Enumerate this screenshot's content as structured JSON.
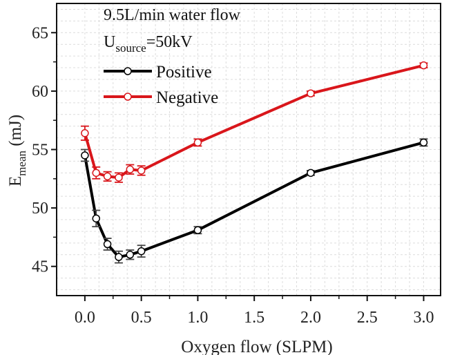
{
  "chart_data": {
    "type": "line",
    "title": "",
    "xlabel": "Oxygen flow (SLPM)",
    "ylabel": {
      "main": "E",
      "subscript": "mean",
      "unit": " (mJ)"
    },
    "xlim": [
      -0.25,
      3.15
    ],
    "ylim": [
      42.5,
      67.5
    ],
    "xticks": [
      0.0,
      0.5,
      1.0,
      1.5,
      2.0,
      2.5,
      3.0
    ],
    "xtick_labels": [
      "0.0",
      "0.5",
      "1.0",
      "1.5",
      "2.0",
      "2.5",
      "3.0"
    ],
    "yticks": [
      45,
      50,
      55,
      60,
      65
    ],
    "ytick_labels": [
      "45",
      "50",
      "55",
      "60",
      "65"
    ],
    "grid": true,
    "annotations": {
      "flow": "9.5L/min water flow",
      "source_main": "U",
      "source_sub": "source",
      "source_value": "=50kV"
    },
    "legend_position": "top-left",
    "series": [
      {
        "name": "Positive",
        "color": "#000000",
        "errorbar_color": "#444444",
        "x": [
          0.0,
          0.1,
          0.2,
          0.3,
          0.4,
          0.5,
          1.0,
          2.0,
          3.0
        ],
        "y": [
          54.5,
          49.1,
          46.9,
          45.8,
          46.0,
          46.3,
          48.1,
          53.0,
          55.6
        ],
        "err": [
          0.5,
          0.7,
          0.5,
          0.5,
          0.4,
          0.5,
          0.3,
          0.2,
          0.3
        ]
      },
      {
        "name": "Negative",
        "color": "#d9161b",
        "errorbar_color": "#d9161b",
        "x": [
          0.0,
          0.1,
          0.2,
          0.3,
          0.4,
          0.5,
          1.0,
          2.0,
          3.0
        ],
        "y": [
          56.4,
          53.0,
          52.7,
          52.6,
          53.3,
          53.2,
          55.6,
          59.8,
          62.2
        ],
        "err": [
          0.6,
          0.5,
          0.4,
          0.4,
          0.4,
          0.4,
          0.3,
          0.2,
          0.2
        ]
      }
    ]
  }
}
